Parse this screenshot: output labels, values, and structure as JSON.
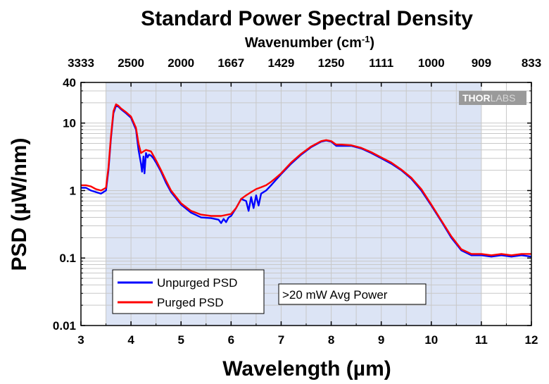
{
  "chart_data": {
    "type": "line",
    "title": "Standard Power Spectral Density",
    "xlabel": "Wavelength (µm)",
    "ylabel": "PSD (µW/nm)",
    "top_axis_label": "Wavenumber (cm",
    "top_axis_label_sup": "-1",
    "top_axis_label_end": ")",
    "xlim": [
      3,
      12
    ],
    "ylim": [
      0.01,
      40
    ],
    "yscale": "log",
    "grid": true,
    "x_ticks": [
      "3",
      "4",
      "5",
      "6",
      "7",
      "8",
      "9",
      "10",
      "11",
      "12"
    ],
    "y_ticks": [
      "0.01",
      "0.1",
      "1",
      "10",
      "40"
    ],
    "top_ticks": [
      "3333",
      "2500",
      "2000",
      "1667",
      "1429",
      "1250",
      "1111",
      "1000",
      "909",
      "833"
    ],
    "shaded_region": [
      3.5,
      11
    ],
    "legend_position": "bottom-left",
    "annotation": ">20 mW Avg Power",
    "series": [
      {
        "name": "Unpurged PSD",
        "color": "#0000ff",
        "x": [
          3.0,
          3.1,
          3.2,
          3.3,
          3.4,
          3.5,
          3.55,
          3.6,
          3.65,
          3.7,
          3.75,
          3.8,
          3.9,
          4.0,
          4.1,
          4.15,
          4.2,
          4.22,
          4.25,
          4.27,
          4.3,
          4.33,
          4.36,
          4.4,
          4.45,
          4.5,
          4.6,
          4.7,
          4.8,
          5.0,
          5.2,
          5.4,
          5.6,
          5.75,
          5.8,
          5.85,
          5.9,
          5.95,
          6.0,
          6.1,
          6.2,
          6.3,
          6.35,
          6.4,
          6.45,
          6.5,
          6.55,
          6.6,
          6.7,
          6.8,
          6.9,
          7.0,
          7.2,
          7.4,
          7.6,
          7.8,
          7.9,
          8.0,
          8.1,
          8.2,
          8.4,
          8.6,
          8.8,
          9.0,
          9.2,
          9.4,
          9.6,
          9.8,
          10.0,
          10.2,
          10.4,
          10.6,
          10.8,
          11.0,
          11.2,
          11.4,
          11.6,
          11.8,
          12.0
        ],
        "values": [
          1.1,
          1.1,
          1.0,
          0.95,
          0.9,
          1.0,
          2.0,
          6.0,
          14.0,
          18.0,
          17.5,
          16.0,
          14.0,
          12.0,
          8.0,
          4.0,
          2.5,
          1.9,
          3.2,
          1.8,
          3.6,
          3.1,
          3.4,
          3.3,
          3.0,
          2.6,
          1.9,
          1.3,
          0.95,
          0.62,
          0.47,
          0.4,
          0.39,
          0.37,
          0.33,
          0.38,
          0.34,
          0.4,
          0.42,
          0.55,
          0.75,
          0.7,
          0.5,
          0.8,
          0.55,
          0.85,
          0.6,
          0.9,
          1.0,
          1.2,
          1.45,
          1.75,
          2.5,
          3.4,
          4.4,
          5.3,
          5.5,
          5.3,
          4.6,
          4.6,
          4.6,
          4.2,
          3.6,
          3.0,
          2.5,
          2.0,
          1.5,
          1.0,
          0.6,
          0.35,
          0.2,
          0.13,
          0.11,
          0.11,
          0.105,
          0.11,
          0.105,
          0.11,
          0.105
        ]
      },
      {
        "name": "Purged PSD",
        "color": "#ff0000",
        "x": [
          3.0,
          3.1,
          3.2,
          3.3,
          3.4,
          3.5,
          3.55,
          3.6,
          3.65,
          3.7,
          3.75,
          3.8,
          3.9,
          4.0,
          4.1,
          4.15,
          4.2,
          4.25,
          4.3,
          4.35,
          4.4,
          4.5,
          4.6,
          4.7,
          4.8,
          5.0,
          5.2,
          5.4,
          5.6,
          5.8,
          6.0,
          6.1,
          6.2,
          6.3,
          6.4,
          6.5,
          6.6,
          6.7,
          6.8,
          6.9,
          7.0,
          7.2,
          7.4,
          7.6,
          7.8,
          7.9,
          8.0,
          8.1,
          8.2,
          8.4,
          8.6,
          8.8,
          9.0,
          9.2,
          9.4,
          9.6,
          9.8,
          10.0,
          10.2,
          10.4,
          10.6,
          10.8,
          11.0,
          11.2,
          11.4,
          11.6,
          11.8,
          12.0
        ],
        "values": [
          1.2,
          1.2,
          1.15,
          1.05,
          1.0,
          1.1,
          2.2,
          6.5,
          15.0,
          19.0,
          18.0,
          16.5,
          14.5,
          12.5,
          8.5,
          5.0,
          3.6,
          3.8,
          4.0,
          3.9,
          3.8,
          2.8,
          2.0,
          1.4,
          1.0,
          0.65,
          0.5,
          0.44,
          0.42,
          0.42,
          0.45,
          0.55,
          0.75,
          0.85,
          0.95,
          1.05,
          1.12,
          1.2,
          1.35,
          1.55,
          1.8,
          2.6,
          3.5,
          4.5,
          5.4,
          5.6,
          5.4,
          4.8,
          4.8,
          4.7,
          4.3,
          3.7,
          3.1,
          2.6,
          2.05,
          1.55,
          1.05,
          0.62,
          0.36,
          0.21,
          0.135,
          0.115,
          0.115,
          0.11,
          0.115,
          0.11,
          0.115,
          0.115
        ]
      }
    ]
  },
  "logo": {
    "part1": "THOR",
    "part2": "LABS"
  },
  "colors": {
    "shade": "#dce4f5",
    "grid": "#c8c8c8",
    "axis": "#000000"
  }
}
